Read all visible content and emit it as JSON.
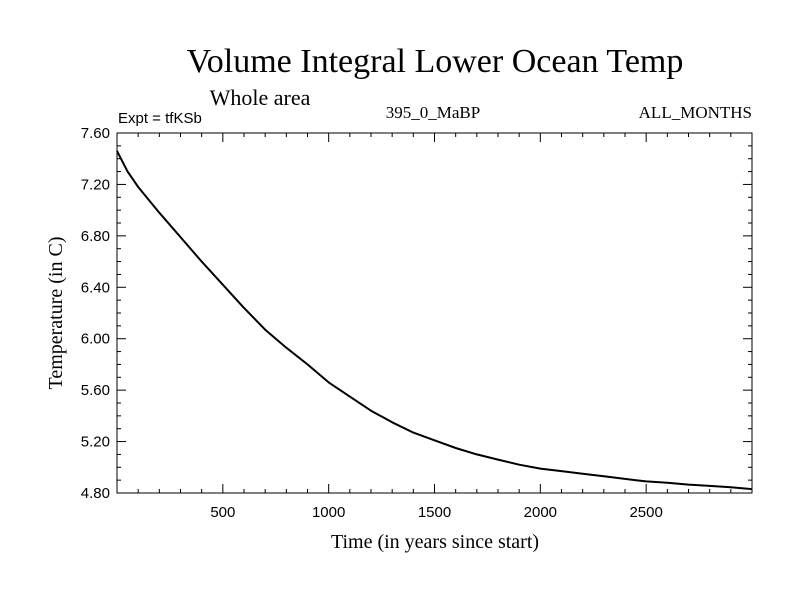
{
  "chart_data": {
    "type": "line",
    "title": "Volume Integral Lower Ocean Temp",
    "subtitle": "Whole area",
    "left_label": "Expt = tfKSb",
    "center_label": "395_0_MaBP",
    "right_label": "ALL_MONTHS",
    "xlabel": "Time (in years since start)",
    "ylabel": "Temperature (in C)",
    "xlim": [
      0,
      3000
    ],
    "ylim": [
      4.8,
      7.6
    ],
    "x_ticks": [
      500,
      1000,
      1500,
      2000,
      2500
    ],
    "y_ticks": [
      "4.80",
      "5.20",
      "5.60",
      "6.00",
      "6.40",
      "6.80",
      "7.20",
      "7.60"
    ],
    "grid": false,
    "series": [
      {
        "name": "Lower Ocean Temp",
        "color": "#000000",
        "x": [
          0,
          50,
          100,
          200,
          300,
          400,
          500,
          600,
          700,
          800,
          900,
          1000,
          1100,
          1200,
          1300,
          1400,
          1500,
          1600,
          1700,
          1800,
          1900,
          2000,
          2100,
          2200,
          2300,
          2400,
          2500,
          2600,
          2700,
          2800,
          2900,
          3000
        ],
        "y": [
          7.46,
          7.3,
          7.18,
          6.98,
          6.79,
          6.6,
          6.42,
          6.24,
          6.07,
          5.93,
          5.8,
          5.66,
          5.55,
          5.44,
          5.35,
          5.27,
          5.21,
          5.15,
          5.1,
          5.06,
          5.02,
          4.99,
          4.97,
          4.95,
          4.93,
          4.91,
          4.89,
          4.88,
          4.865,
          4.855,
          4.845,
          4.83
        ]
      }
    ]
  }
}
